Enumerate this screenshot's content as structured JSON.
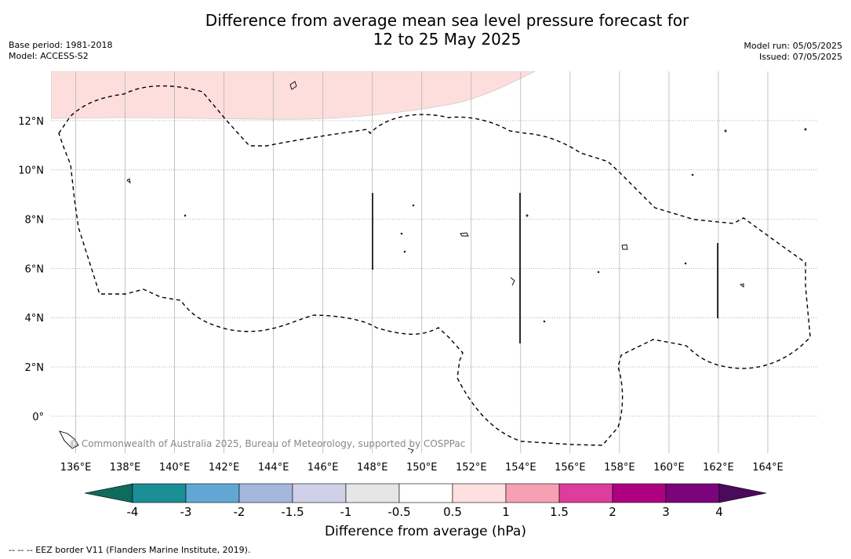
{
  "header": {
    "title_line1": "Difference from average mean sea level pressure forecast for",
    "title_line2": "12 to 25 May 2025",
    "base_period": "Base period: 1981-2018",
    "model": "Model: ACCESS-S2",
    "model_run": "Model run: 05/05/2025",
    "issued": "Issued: 07/05/2025"
  },
  "map": {
    "x_ticks": [
      {
        "lon": 136,
        "label": "136°E"
      },
      {
        "lon": 138,
        "label": "138°E"
      },
      {
        "lon": 140,
        "label": "140°E"
      },
      {
        "lon": 142,
        "label": "142°E"
      },
      {
        "lon": 144,
        "label": "144°E"
      },
      {
        "lon": 146,
        "label": "146°E"
      },
      {
        "lon": 148,
        "label": "148°E"
      },
      {
        "lon": 150,
        "label": "150°E"
      },
      {
        "lon": 152,
        "label": "152°E"
      },
      {
        "lon": 154,
        "label": "154°E"
      },
      {
        "lon": 156,
        "label": "156°E"
      },
      {
        "lon": 158,
        "label": "158°E"
      },
      {
        "lon": 160,
        "label": "160°E"
      },
      {
        "lon": 162,
        "label": "162°E"
      },
      {
        "lon": 164,
        "label": "164°E"
      }
    ],
    "y_ticks": [
      {
        "lat": 12,
        "label": "12°N"
      },
      {
        "lat": 10,
        "label": "10°N"
      },
      {
        "lat": 8,
        "label": "8°N"
      },
      {
        "lat": 6,
        "label": "6°N"
      },
      {
        "lat": 4,
        "label": "4°N"
      },
      {
        "lat": 2,
        "label": "2°N"
      },
      {
        "lat": 0,
        "label": "0°"
      }
    ],
    "lon_range": [
      135,
      166
    ],
    "lat_range": [
      -1.5,
      14
    ],
    "anomaly_region": {
      "class": "0.5 to 1",
      "color": "#fddedd"
    },
    "copyright": "© Commonwealth of Australia 2025, Bureau of Meteorology, supported by COSPPac"
  },
  "colorbar": {
    "title": "Difference from average (hPa)",
    "min_color": "#0e6b5e",
    "max_color": "#4b0a5c",
    "bins": [
      {
        "color": "#1a8f96"
      },
      {
        "color": "#62a7d3"
      },
      {
        "color": "#a5b7dc"
      },
      {
        "color": "#d0d0e8"
      },
      {
        "color": "#e6e6e6"
      },
      {
        "color": "#ffffff"
      },
      {
        "color": "#fde0df"
      },
      {
        "color": "#f7a0b4"
      },
      {
        "color": "#dd3d9c"
      },
      {
        "color": "#ad0180"
      },
      {
        "color": "#7b037b"
      }
    ],
    "labels": [
      "-4",
      "-3",
      "-2",
      "-1.5",
      "-1",
      "-0.5",
      "0.5",
      "1",
      "1.5",
      "2",
      "3",
      "4"
    ]
  },
  "footnote": "--  --  -- EEZ border V11 (Flanders Marine Institute, 2019)."
}
